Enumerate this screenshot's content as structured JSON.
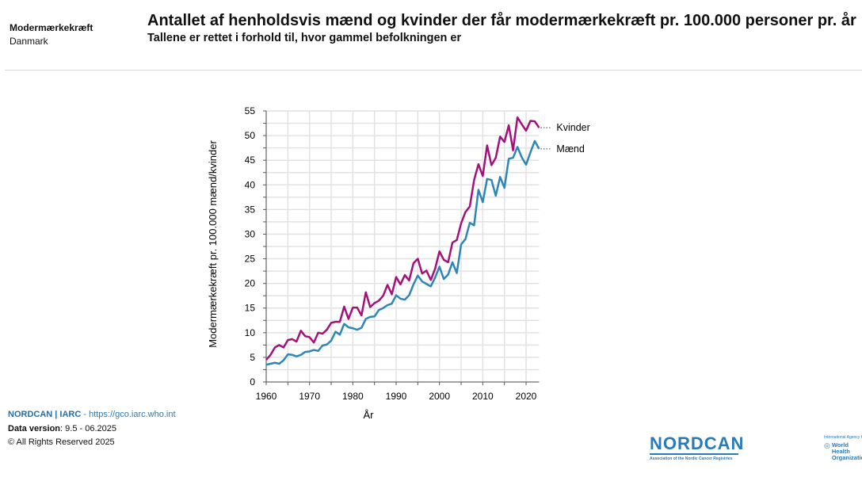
{
  "header": {
    "cancer": "Modermærkekræft",
    "country": "Danmark",
    "title": "Antallet af henholdsvis mænd og kvinder der får modermærkekræft pr. 100.000 personer pr. år",
    "subtitle": "Tallene er rettet i forhold til, hvor gammel befolkningen er"
  },
  "footer": {
    "brand": "NORDCAN | IARC",
    "sep": " - ",
    "url": "https://gco.iarc.who.int",
    "version_label": "Data version",
    "version": ": 9.5 - 06.2025",
    "copyright": "© All Rights Reserved 2025"
  },
  "logos": {
    "nordcan": "NORDCAN",
    "nordcan_sub": "Association of the Nordic Cancer Registries",
    "iarc": "International Agency for Research on Cancer",
    "who": "World Health Organization"
  },
  "chart_data": {
    "type": "line",
    "xlabel": "År",
    "ylabel": "Modermærkekræft pr. 100.000 mænd/kvinder",
    "xlim": [
      1960,
      2023
    ],
    "ylim": [
      0,
      55
    ],
    "xticks": [
      1960,
      1970,
      1980,
      1990,
      2000,
      2010,
      2020
    ],
    "yticks": [
      0,
      5,
      10,
      15,
      20,
      25,
      30,
      35,
      40,
      45,
      50,
      55
    ],
    "grid": true,
    "legend": "right-end labels",
    "x_start": 1960,
    "series": [
      {
        "name": "Kvinder",
        "color": "#a3117a",
        "values": [
          4.5,
          5.5,
          7,
          7.5,
          7,
          8.5,
          8.7,
          8.2,
          10.4,
          9.3,
          9.1,
          8,
          10,
          9.8,
          10.6,
          12,
          12.2,
          12.2,
          15.3,
          12.8,
          15.1,
          15.1,
          13.5,
          18.2,
          15.2,
          16,
          16.5,
          17.5,
          19.7,
          17.8,
          21.3,
          19.8,
          21.7,
          20.6,
          24.1,
          25,
          22,
          22.6,
          20.7,
          23,
          26.5,
          24.8,
          24.3,
          28.3,
          28.8,
          32.2,
          34.5,
          35.6,
          41,
          44.2,
          41.8,
          48,
          44,
          45.5,
          49.8,
          48.7,
          52.1,
          47,
          53.7,
          52.3,
          51,
          53,
          52.9,
          51.6
        ]
      },
      {
        "name": "Mænd",
        "color": "#2e86b5",
        "values": [
          3.5,
          3.7,
          3.9,
          3.7,
          4.4,
          5.6,
          5.5,
          5.2,
          5.5,
          6.1,
          6.2,
          6.5,
          6.3,
          7.4,
          7.6,
          8.4,
          10.2,
          9.6,
          11.8,
          11.1,
          10.9,
          10.6,
          11,
          12.8,
          13.2,
          13.3,
          14.6,
          15,
          15.6,
          15.9,
          17.6,
          16.9,
          16.7,
          17.6,
          19.8,
          21.6,
          20.4,
          19.9,
          19.4,
          21.2,
          23.4,
          20.9,
          21.8,
          24.3,
          22.1,
          27.9,
          29,
          32.3,
          31.8,
          39,
          36.5,
          41.2,
          41,
          37.8,
          41.6,
          39.4,
          45.3,
          45.5,
          47.7,
          45.6,
          44.1,
          46.6,
          48.9,
          47.3
        ]
      }
    ]
  }
}
